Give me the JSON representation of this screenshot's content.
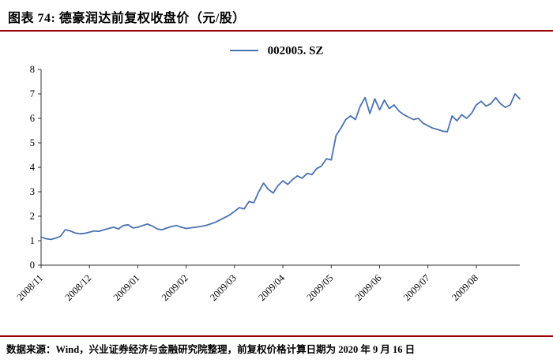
{
  "header": {
    "title": "图表 74: 德豪润达前复权收盘价（元/股）"
  },
  "footer": {
    "source": "数据来源：Wind，兴业证券经济与金融研究院整理，前复权价格计算日期为 2020 年 9 月 16 日"
  },
  "colors": {
    "accent_red": "#990000",
    "axis": "#333333",
    "text": "#000000"
  },
  "chart_data": {
    "type": "line",
    "title": "德豪润达前复权收盘价（元/股）",
    "legend": "002005. SZ",
    "legend_position": "top-center",
    "line_color": "#4a72b0",
    "grid": false,
    "ylim": [
      0,
      8
    ],
    "yticks": [
      0,
      1,
      2,
      3,
      4,
      5,
      6,
      7,
      8
    ],
    "x_tick_labels": [
      "2008/11",
      "2008/12",
      "2009/01",
      "2009/02",
      "2009/03",
      "2009/04",
      "2009/05",
      "2009/06",
      "2009/07",
      "2009/08"
    ],
    "x_tick_indices": [
      0,
      10,
      20,
      30,
      40,
      50,
      60,
      70,
      80,
      90
    ],
    "series": [
      {
        "name": "002005.SZ",
        "values": [
          1.15,
          1.08,
          1.05,
          1.1,
          1.18,
          1.45,
          1.4,
          1.32,
          1.28,
          1.3,
          1.35,
          1.4,
          1.38,
          1.45,
          1.5,
          1.55,
          1.48,
          1.62,
          1.65,
          1.52,
          1.55,
          1.62,
          1.68,
          1.6,
          1.48,
          1.45,
          1.52,
          1.58,
          1.62,
          1.55,
          1.5,
          1.53,
          1.55,
          1.58,
          1.62,
          1.68,
          1.75,
          1.85,
          1.95,
          2.05,
          2.2,
          2.35,
          2.3,
          2.6,
          2.55,
          3.0,
          3.35,
          3.1,
          2.95,
          3.25,
          3.45,
          3.3,
          3.5,
          3.65,
          3.55,
          3.75,
          3.7,
          3.95,
          4.05,
          4.35,
          4.3,
          5.3,
          5.6,
          5.95,
          6.1,
          5.95,
          6.5,
          6.85,
          6.2,
          6.8,
          6.35,
          6.75,
          6.4,
          6.55,
          6.3,
          6.15,
          6.05,
          5.95,
          6.0,
          5.8,
          5.7,
          5.6,
          5.55,
          5.48,
          5.45,
          6.1,
          5.9,
          6.15,
          6.0,
          6.2,
          6.55,
          6.7,
          6.5,
          6.6,
          6.85,
          6.6,
          6.45,
          6.55,
          7.0,
          6.8
        ]
      }
    ]
  }
}
